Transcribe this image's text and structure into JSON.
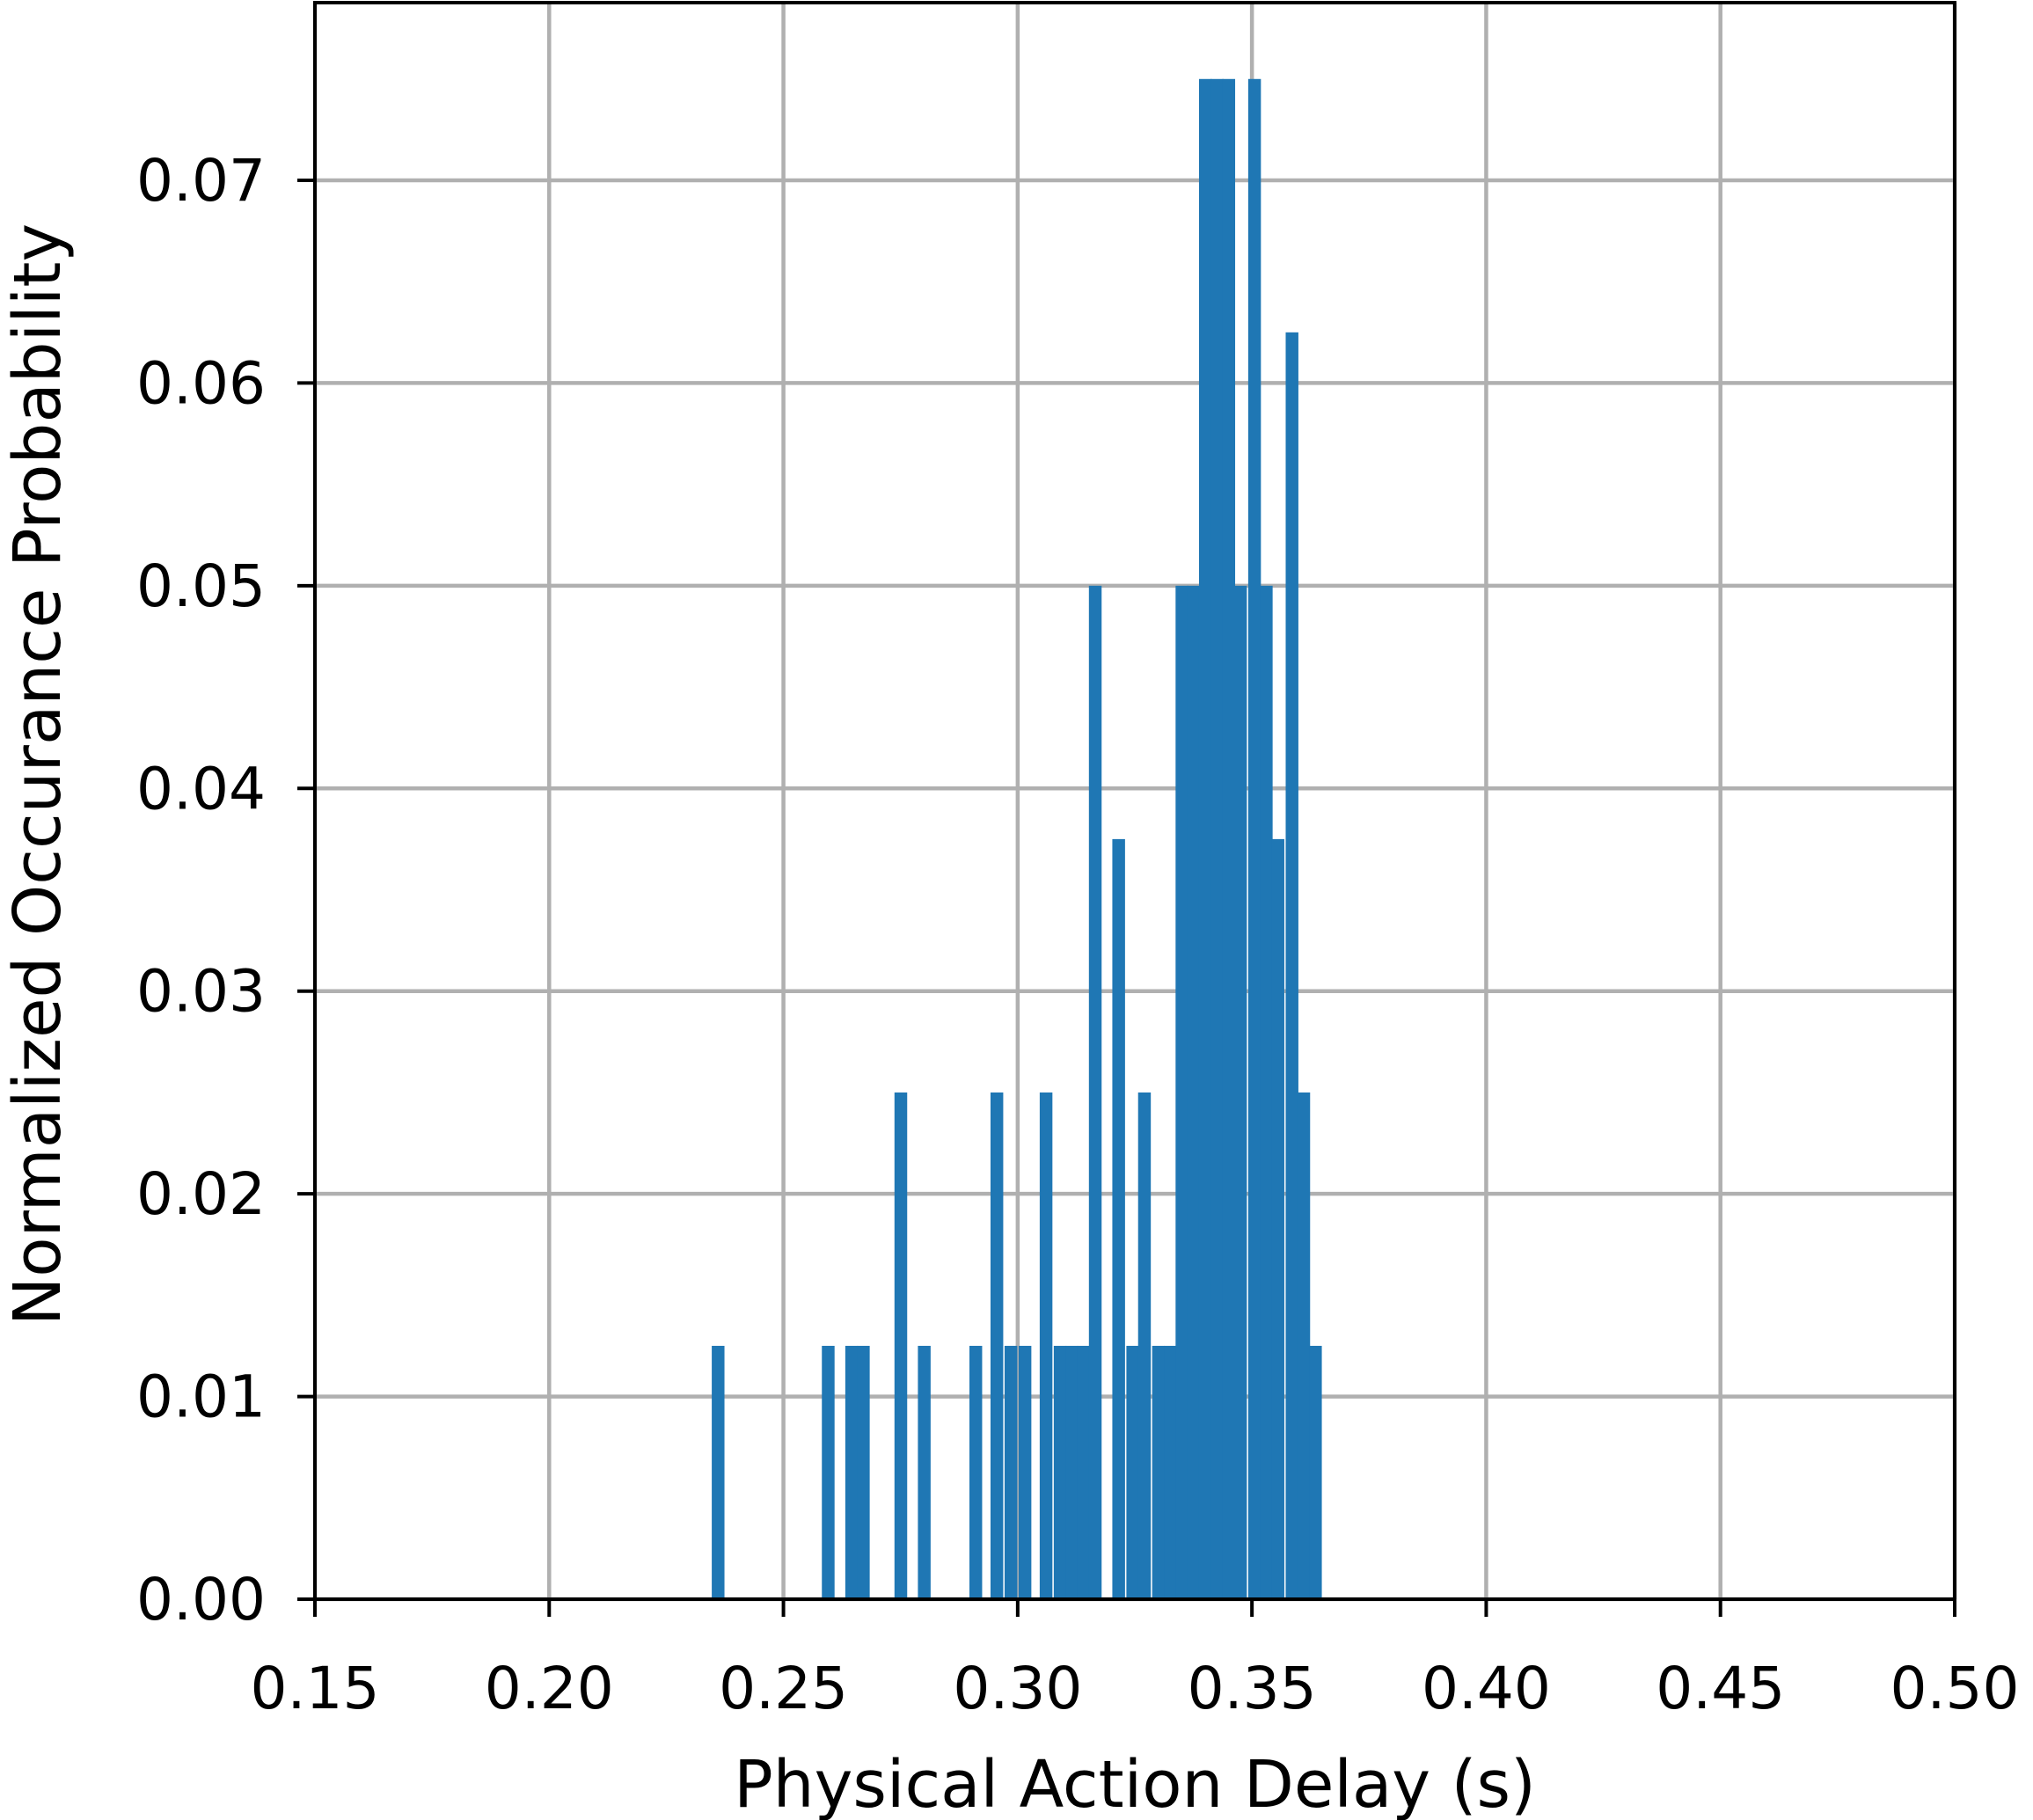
{
  "chart_data": {
    "type": "bar",
    "title": "",
    "xlabel": "Physical Action Delay (s)",
    "ylabel": "Normalized Occurance Probability",
    "xlim": [
      0.15,
      0.5
    ],
    "ylim": [
      0.0,
      0.078
    ],
    "grid": true,
    "bar_color": "#1f77b4",
    "bin_width": 0.0026,
    "x_ticks": [
      "0.15",
      "0.20",
      "0.25",
      "0.30",
      "0.35",
      "0.40",
      "0.45",
      "0.50"
    ],
    "y_ticks": [
      "0.00",
      "0.01",
      "0.02",
      "0.03",
      "0.04",
      "0.05",
      "0.06",
      "0.07"
    ],
    "x_tick_values": [
      0.15,
      0.2,
      0.25,
      0.3,
      0.35,
      0.4,
      0.45,
      0.5
    ],
    "y_tick_values": [
      0.0,
      0.01,
      0.02,
      0.03,
      0.04,
      0.05,
      0.06,
      0.07
    ],
    "bars": [
      {
        "x": 0.236,
        "y": 0.0125
      },
      {
        "x": 0.2595,
        "y": 0.0125
      },
      {
        "x": 0.2645,
        "y": 0.0125
      },
      {
        "x": 0.267,
        "y": 0.0125
      },
      {
        "x": 0.275,
        "y": 0.025
      },
      {
        "x": 0.28,
        "y": 0.0125
      },
      {
        "x": 0.291,
        "y": 0.0125
      },
      {
        "x": 0.2955,
        "y": 0.025
      },
      {
        "x": 0.2985,
        "y": 0.0125
      },
      {
        "x": 0.3015,
        "y": 0.0125
      },
      {
        "x": 0.306,
        "y": 0.025
      },
      {
        "x": 0.309,
        "y": 0.0125
      },
      {
        "x": 0.3115,
        "y": 0.0125
      },
      {
        "x": 0.314,
        "y": 0.0125
      },
      {
        "x": 0.3165,
        "y": 0.05
      },
      {
        "x": 0.3215,
        "y": 0.0375
      },
      {
        "x": 0.3245,
        "y": 0.0125
      },
      {
        "x": 0.327,
        "y": 0.025
      },
      {
        "x": 0.33,
        "y": 0.0125
      },
      {
        "x": 0.3325,
        "y": 0.0125
      },
      {
        "x": 0.335,
        "y": 0.05
      },
      {
        "x": 0.3375,
        "y": 0.05
      },
      {
        "x": 0.34,
        "y": 0.075
      },
      {
        "x": 0.3425,
        "y": 0.075
      },
      {
        "x": 0.345,
        "y": 0.075
      },
      {
        "x": 0.3475,
        "y": 0.05
      },
      {
        "x": 0.3505,
        "y": 0.075
      },
      {
        "x": 0.353,
        "y": 0.05
      },
      {
        "x": 0.3555,
        "y": 0.0375
      },
      {
        "x": 0.3585,
        "y": 0.0625
      },
      {
        "x": 0.361,
        "y": 0.025
      },
      {
        "x": 0.3635,
        "y": 0.0125
      }
    ]
  }
}
